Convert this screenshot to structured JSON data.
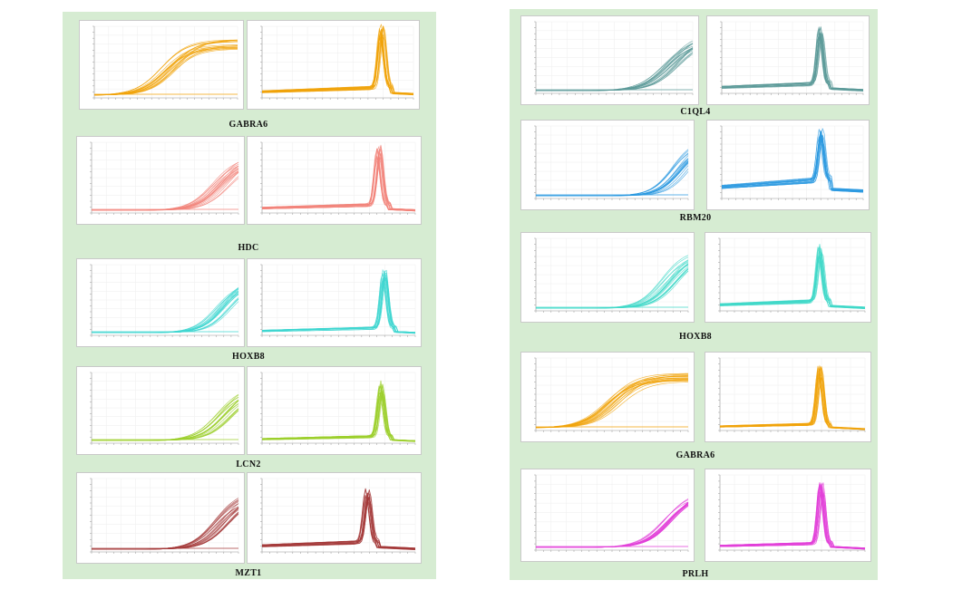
{
  "colors": {
    "panel_background": "#d6ecd2"
  },
  "chart_data": [
    {
      "type": "line",
      "title": "GABRA6",
      "color": "#f0a30a",
      "amplification": {
        "midpoint": 0.52,
        "steepness": 11,
        "plateau": 0.82
      },
      "melt": {
        "baseline": 0.12,
        "peak_position": 0.79,
        "peak_height": 0.85
      }
    },
    {
      "type": "line",
      "title": "HDC",
      "color": "#f2837a",
      "amplification": {
        "midpoint": 0.88,
        "steepness": 12,
        "plateau": 0.85
      },
      "melt": {
        "baseline": 0.1,
        "peak_position": 0.76,
        "peak_height": 0.8
      }
    },
    {
      "type": "line",
      "title": "HOXB8",
      "color": "#3fd6d0",
      "amplification": {
        "midpoint": 0.9,
        "steepness": 13,
        "plateau": 0.85
      },
      "melt": {
        "baseline": 0.09,
        "peak_position": 0.8,
        "peak_height": 0.82
      }
    },
    {
      "type": "line",
      "title": "LCN2",
      "color": "#9ccf2c",
      "amplification": {
        "midpoint": 0.9,
        "steepness": 12,
        "plateau": 0.85
      },
      "melt": {
        "baseline": 0.08,
        "peak_position": 0.78,
        "peak_height": 0.75
      }
    },
    {
      "type": "line",
      "title": "MZT1",
      "color": "#a43a3a",
      "amplification": {
        "midpoint": 0.9,
        "steepness": 12,
        "plateau": 0.85
      },
      "melt": {
        "baseline": 0.12,
        "peak_position": 0.69,
        "peak_height": 0.72
      }
    },
    {
      "type": "line",
      "title": "C1QL4",
      "color": "#5b9a98",
      "amplification": {
        "midpoint": 0.86,
        "steepness": 12,
        "plateau": 0.85
      },
      "melt": {
        "baseline": 0.12,
        "peak_position": 0.7,
        "peak_height": 0.8
      }
    },
    {
      "type": "line",
      "title": "RBM20",
      "color": "#2c9ae0",
      "amplification": {
        "midpoint": 0.95,
        "steepness": 14,
        "plateau": 0.85
      },
      "melt": {
        "baseline": 0.22,
        "peak_position": 0.7,
        "peak_height": 0.7
      }
    },
    {
      "type": "line",
      "title": "HOXB8",
      "color": "#40d8c8",
      "amplification": {
        "midpoint": 0.88,
        "steepness": 13,
        "plateau": 0.85
      },
      "melt": {
        "baseline": 0.12,
        "peak_position": 0.69,
        "peak_height": 0.75
      }
    },
    {
      "type": "line",
      "title": "GABRA6",
      "color": "#f0a30a",
      "amplification": {
        "midpoint": 0.5,
        "steepness": 11,
        "plateau": 0.8
      },
      "melt": {
        "baseline": 0.08,
        "peak_position": 0.69,
        "peak_height": 0.78
      }
    },
    {
      "type": "line",
      "title": "PRLH",
      "color": "#e23fd8",
      "amplification": {
        "midpoint": 0.86,
        "steepness": 12,
        "plateau": 0.85
      },
      "melt": {
        "baseline": 0.08,
        "peak_position": 0.7,
        "peak_height": 0.8
      }
    }
  ]
}
